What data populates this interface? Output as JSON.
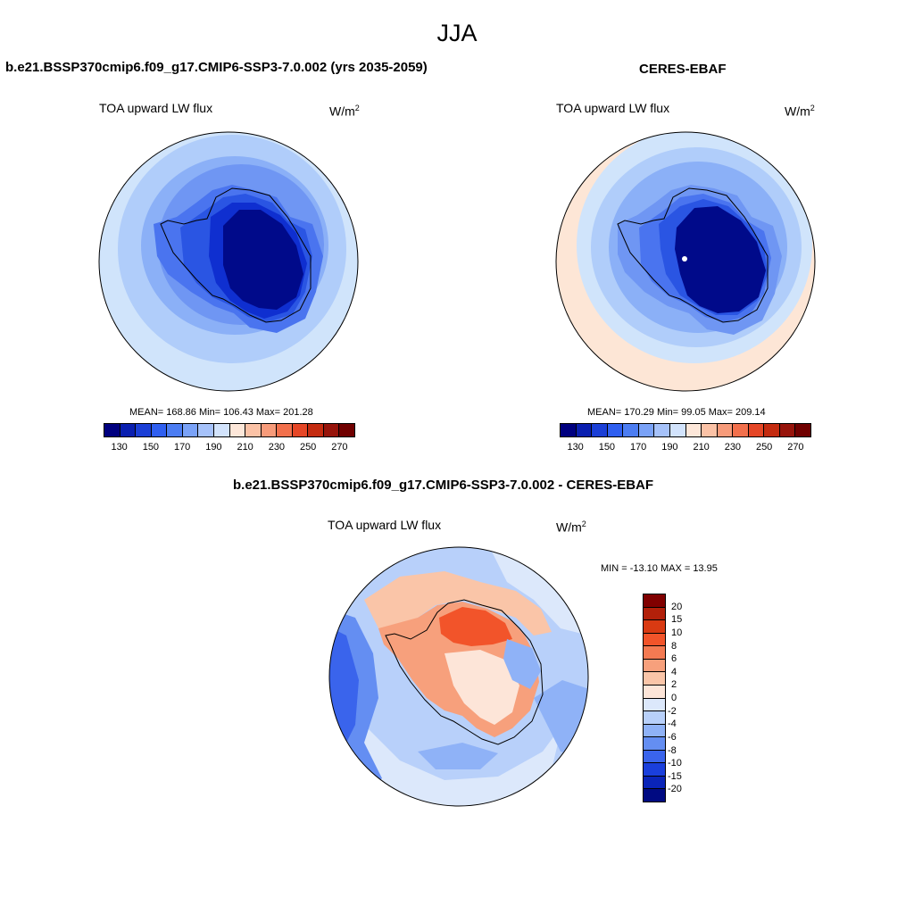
{
  "page_title": "JJA",
  "panels": [
    {
      "title": "b.e21.BSSP370cmip6.f09_g17.CMIP6-SSP3-7.0.002 (yrs 2035-2059)",
      "variable": "TOA upward LW flux",
      "unit_base": "W/m",
      "unit_exp": "2",
      "stats": "MEAN= 168.86  Min= 106.43  Max= 201.28",
      "ring_colors": [
        "#d0e4fb",
        "#b0cdfa",
        "#8bb0f7",
        "#6f96f3",
        "#4a74ef",
        "#2a55e3",
        "#0f2fd0",
        "#000a8a"
      ]
    },
    {
      "title": "CERES-EBAF",
      "variable": "TOA upward LW flux",
      "unit_base": "W/m",
      "unit_exp": "2",
      "stats": "MEAN= 170.29  Min=  99.05  Max= 209.14",
      "ring_colors": [
        "#fde6d6",
        "#d0e4fb",
        "#b0cdfa",
        "#8bb0f7",
        "#6f96f3",
        "#4a74ef",
        "#2a55e3",
        "#000a8a"
      ]
    }
  ],
  "absolute_colorbar": {
    "colors": [
      "#00007f",
      "#0a1fb0",
      "#1b3fd6",
      "#2f5ff0",
      "#4c7df2",
      "#7aa2f7",
      "#a6c2fa",
      "#d2e3fc",
      "#fde7d9",
      "#fbc2a6",
      "#f79b7a",
      "#f2704c",
      "#e54626",
      "#c42b10",
      "#97140b",
      "#700000"
    ],
    "tick_labels": [
      "130",
      "150",
      "170",
      "190",
      "210",
      "230",
      "250",
      "270"
    ]
  },
  "diff_panel": {
    "title": "b.e21.BSSP370cmip6.f09_g17.CMIP6-SSP3-7.0.002 - CERES-EBAF",
    "variable": "TOA upward LW flux",
    "unit_base": "W/m",
    "unit_exp": "2",
    "stats": "MIN = -13.10 MAX =  13.95",
    "colorbar": {
      "colors": [
        "#800000",
        "#b2200a",
        "#d93a12",
        "#f2542a",
        "#f47a52",
        "#f7a07c",
        "#fac5a8",
        "#fde5d8",
        "#dce8fb",
        "#b8d0fa",
        "#8fb2f7",
        "#648ef2",
        "#3a64ec",
        "#1a3fdc",
        "#0a24b8",
        "#000a82"
      ],
      "tick_labels": [
        "20",
        "15",
        "10",
        "8",
        "6",
        "4",
        "2",
        "0",
        "-2",
        "-4",
        "-6",
        "-8",
        "-10",
        "-15",
        "-20"
      ]
    }
  }
}
